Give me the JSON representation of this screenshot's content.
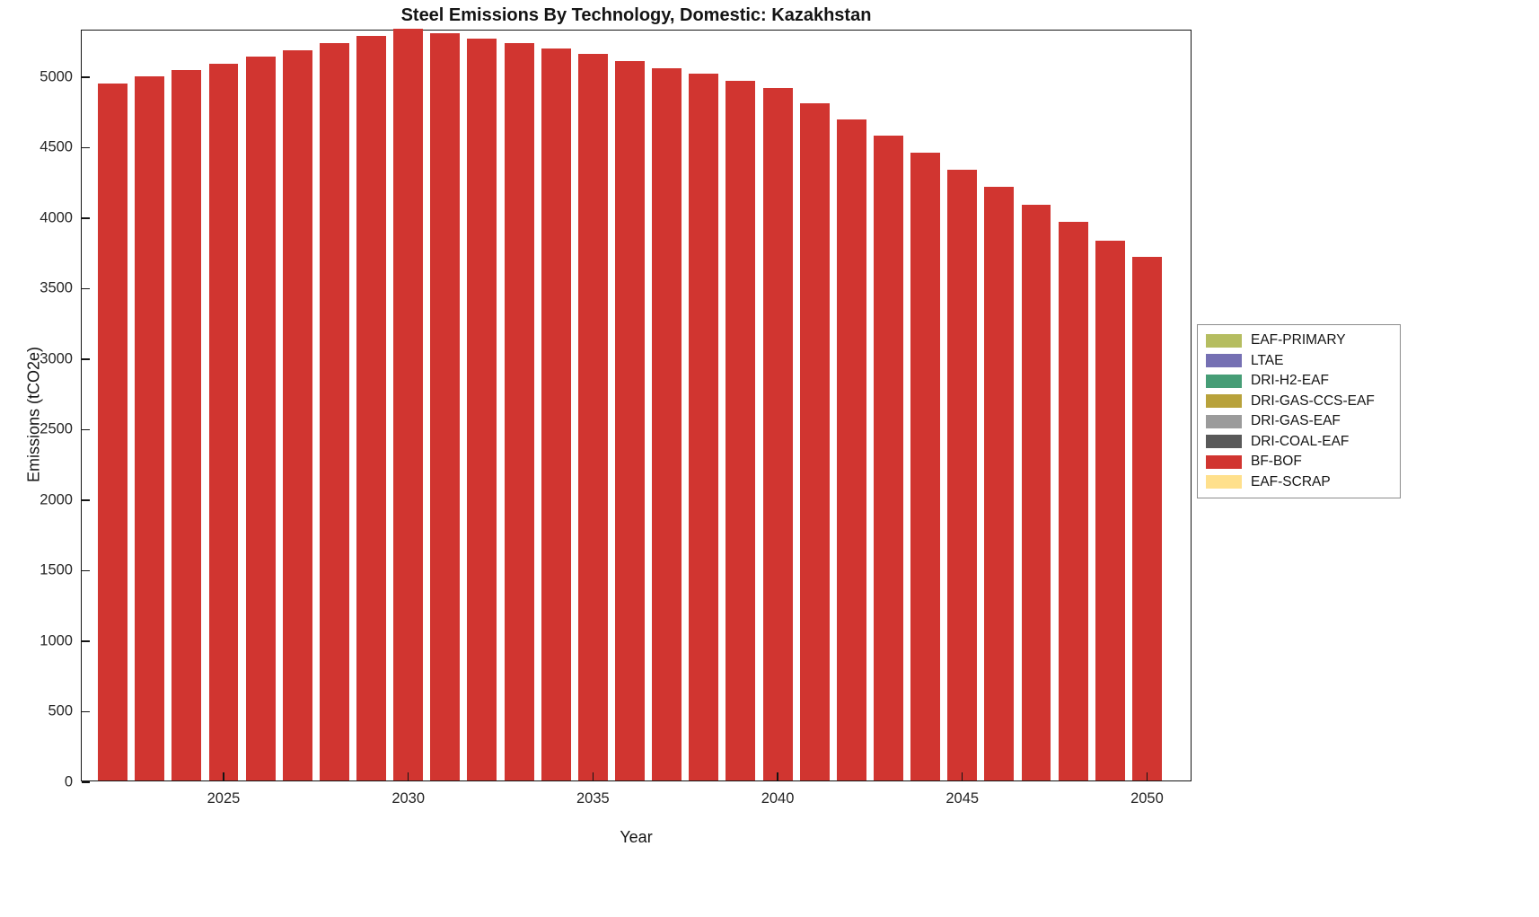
{
  "chart_data": {
    "type": "bar",
    "title": "Steel Emissions By Technology, Domestic: Kazakhstan",
    "xlabel": "Year",
    "ylabel": "Emissions (tCO2e)",
    "x": [
      2022,
      2023,
      2024,
      2025,
      2026,
      2027,
      2028,
      2029,
      2030,
      2031,
      2032,
      2033,
      2034,
      2035,
      2036,
      2037,
      2038,
      2039,
      2040,
      2041,
      2042,
      2043,
      2044,
      2045,
      2046,
      2047,
      2048,
      2049,
      2050
    ],
    "series": [
      {
        "name": "BF-BOF",
        "color": "#d13530",
        "values": [
          4940,
          4990,
          5040,
          5080,
          5130,
          5180,
          5230,
          5280,
          5330,
          5300,
          5260,
          5230,
          5190,
          5150,
          5100,
          5050,
          5010,
          4960,
          4910,
          4800,
          4690,
          4570,
          4450,
          4330,
          4210,
          4080,
          3960,
          3830,
          3710
        ]
      }
    ],
    "ylim": [
      0,
      5330
    ],
    "yticks": [
      0,
      500,
      1000,
      1500,
      2000,
      2500,
      3000,
      3500,
      4000,
      4500,
      5000
    ],
    "xticks": [
      2025,
      2030,
      2035,
      2040,
      2045,
      2050
    ],
    "grid": false,
    "legend": {
      "position": "right-outside",
      "entries": [
        {
          "label": "EAF-PRIMARY",
          "color": "#b5bd60"
        },
        {
          "label": "LTAE",
          "color": "#7570b3"
        },
        {
          "label": "DRI-H2-EAF",
          "color": "#469d76"
        },
        {
          "label": "DRI-GAS-CCS-EAF",
          "color": "#b8a23b"
        },
        {
          "label": "DRI-GAS-EAF",
          "color": "#9b9b9b"
        },
        {
          "label": "DRI-COAL-EAF",
          "color": "#595959"
        },
        {
          "label": "BF-BOF",
          "color": "#d13530"
        },
        {
          "label": "EAF-SCRAP",
          "color": "#ffe08c"
        }
      ]
    }
  }
}
